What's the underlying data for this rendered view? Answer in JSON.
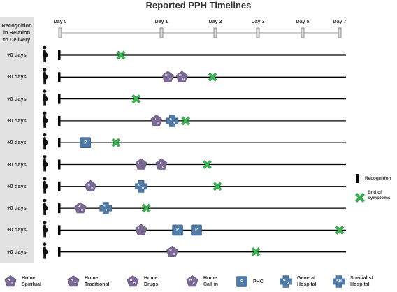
{
  "title": "Reported PPH Timelines",
  "column_header": [
    "Recognition",
    "in Relation",
    "to Delivery"
  ],
  "days": [
    "Day 0",
    "Day 1",
    "Day 2",
    "Day 3",
    "Day 5",
    "Day 7"
  ],
  "day_values": [
    0,
    1,
    2,
    3,
    5,
    7
  ],
  "rows": [
    {
      "label": "+0 days",
      "events": [
        {
          "type": "end",
          "day": 0.6
        }
      ]
    },
    {
      "label": "+0 days",
      "events": [
        {
          "type": "HT",
          "day": 1.12
        },
        {
          "type": "HD",
          "day": 1.38
        },
        {
          "type": "end",
          "day": 1.95
        }
      ]
    },
    {
      "label": "+0 days",
      "events": [
        {
          "type": "end",
          "day": 0.75
        }
      ]
    },
    {
      "label": "+0 days",
      "events": [
        {
          "type": "HS",
          "day": 0.95
        },
        {
          "type": "GH",
          "day": 1.2
        },
        {
          "type": "end",
          "day": 1.45
        }
      ]
    },
    {
      "label": "+0 days",
      "events": [
        {
          "type": "P",
          "day": 0.25
        },
        {
          "type": "end",
          "day": 0.55
        }
      ]
    },
    {
      "label": "+0 days",
      "events": [
        {
          "type": "HT",
          "day": 0.8
        },
        {
          "type": "HD",
          "day": 1.0
        },
        {
          "type": "end",
          "day": 1.85
        }
      ]
    },
    {
      "label": "+0 days",
      "events": [
        {
          "type": "HD",
          "day": 0.3
        },
        {
          "type": "GH",
          "day": 0.8
        },
        {
          "type": "end",
          "day": 2.05
        }
      ]
    },
    {
      "label": "+0 days",
      "events": [
        {
          "type": "HC",
          "day": 0.2
        },
        {
          "type": "GH",
          "day": 0.45
        },
        {
          "type": "end",
          "day": 0.85
        }
      ]
    },
    {
      "label": "+0 days",
      "events": [
        {
          "type": "HT",
          "day": 0.8
        },
        {
          "type": "P",
          "day": 1.3
        },
        {
          "type": "P",
          "day": 1.65
        },
        {
          "type": "end",
          "day": 7.0
        }
      ]
    },
    {
      "label": "+0 days",
      "events": [
        {
          "type": "HD",
          "day": 1.2
        },
        {
          "type": "end",
          "day": 2.95
        }
      ]
    }
  ],
  "icon_types": {
    "HS": {
      "shape": "pentagon",
      "letters": [
        "H",
        "S"
      ]
    },
    "HT": {
      "shape": "pentagon",
      "letters": [
        "H",
        "T"
      ]
    },
    "HD": {
      "shape": "pentagon",
      "letters": [
        "H",
        "D"
      ]
    },
    "HC": {
      "shape": "pentagon",
      "letters": [
        "H",
        "C"
      ]
    },
    "P": {
      "shape": "square",
      "letters": [
        "P"
      ]
    },
    "GH": {
      "shape": "cross",
      "letters": [
        "G",
        "H"
      ]
    },
    "SH": {
      "shape": "cross",
      "letters": [
        "SH"
      ]
    }
  },
  "side_legend": {
    "recognition": "Recognition",
    "end_of_symptoms": [
      "End of",
      "symptoms"
    ]
  },
  "legend": [
    {
      "type": "HS",
      "label": [
        "Home",
        "Spiritual"
      ]
    },
    {
      "type": "HT",
      "label": [
        "Home",
        "Traditional"
      ]
    },
    {
      "type": "HD",
      "label": [
        "Home",
        "Drugs"
      ]
    },
    {
      "type": "HC",
      "label": [
        "Home",
        "Call in"
      ]
    },
    {
      "type": "P",
      "label": [
        "PHC"
      ]
    },
    {
      "type": "GH",
      "label": [
        "General",
        "Hospital"
      ]
    },
    {
      "type": "SH",
      "label": [
        "Specialist",
        "Hospital"
      ]
    }
  ],
  "colors": {
    "pentagon": "#7b6a96",
    "pentagon_stroke": "#5c4f72",
    "box": "#4f7aa6",
    "box_stroke": "#3a5d82",
    "end_marker": "#3cb554",
    "end_marker_stroke": "#2a8a3e",
    "line": "#000000",
    "header_bg": "#e2e2e2"
  }
}
